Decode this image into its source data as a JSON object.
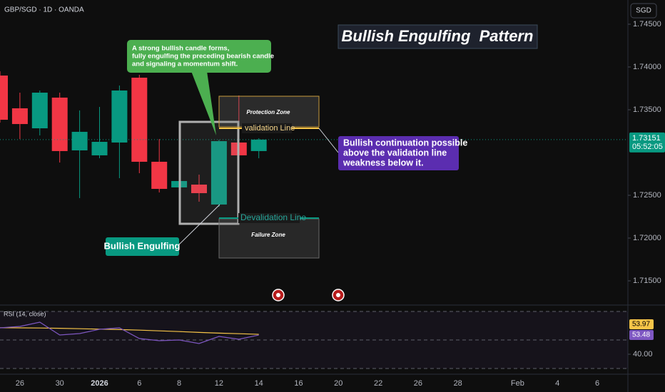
{
  "header": {
    "symbol": "GBP/SGD · 1D · OANDA",
    "currency_button": "SGD"
  },
  "chart_data": [
    {
      "type": "candlestick",
      "categories": [
        null,
        "26",
        null,
        "30",
        null,
        "2026",
        null,
        "6",
        null,
        "8",
        null,
        "12",
        null,
        "14",
        null,
        "16",
        null,
        "20",
        null,
        "22",
        null,
        "26",
        null,
        "28",
        null,
        null,
        "Feb",
        null,
        "4",
        null,
        "6"
      ],
      "open": [
        1.739,
        1.73517,
        1.73283,
        1.73642,
        1.73025,
        1.72967,
        1.73117,
        1.73875,
        1.72892,
        1.72592,
        1.72625,
        1.72392,
        1.73117,
        1.73017,
        null,
        null,
        null,
        null,
        null,
        null,
        null,
        null,
        null,
        null,
        null,
        null,
        null,
        null,
        null,
        null,
        null
      ],
      "high": [
        1.7395,
        1.737,
        1.73725,
        1.737,
        1.73492,
        1.73533,
        1.73783,
        1.73908,
        1.73158,
        1.72867,
        1.72742,
        1.7315,
        1.73667,
        1.73167,
        null,
        null,
        null,
        null,
        null,
        null,
        null,
        null,
        null,
        null,
        null,
        null,
        null,
        null,
        null,
        null,
        null
      ],
      "low": [
        1.7335,
        1.73158,
        1.732,
        1.72883,
        1.72467,
        1.72933,
        1.727,
        1.72758,
        1.72533,
        1.72517,
        1.72425,
        1.72367,
        1.72933,
        1.72933,
        null,
        null,
        null,
        null,
        null,
        null,
        null,
        null,
        null,
        null,
        null,
        null,
        null,
        null,
        null,
        null,
        null
      ],
      "close": [
        1.73383,
        1.73333,
        1.737,
        1.73017,
        1.73242,
        1.73125,
        1.73725,
        1.72892,
        1.72575,
        1.72667,
        1.72525,
        1.73133,
        1.72967,
        1.73151,
        null,
        null,
        null,
        null,
        null,
        null,
        null,
        null,
        null,
        null,
        null,
        null,
        null,
        null,
        null,
        null,
        null
      ],
      "up_color": "#089981",
      "down_color": "#f23645",
      "ylim": [
        1.71242,
        1.74783
      ],
      "yticks": [
        {
          "value": 1.745,
          "label": "1.74500"
        },
        {
          "value": 1.74,
          "label": "1.74000"
        },
        {
          "value": 1.735,
          "label": "1.73500"
        },
        {
          "value": 1.725,
          "label": "1.72500"
        },
        {
          "value": 1.72,
          "label": "1.72000"
        },
        {
          "value": 1.715,
          "label": "1.71500"
        }
      ],
      "last_price": {
        "value": 1.73151,
        "label": "1.73151"
      },
      "countdown": "05:52:05",
      "annotations": {
        "title": "Bullish Engulfing  Pattern",
        "callout": [
          "A strong bullish candle forms,",
          "fully engulfing the preceding bearish candle",
          "and signaling a momentum shift."
        ],
        "protection_zone": "Protection Zone",
        "validation_line": "validation Line",
        "devalidation_line": "Devalidation Line",
        "failure_zone": "Failure Zone",
        "note": [
          "Bullish continuation possible",
          "above the validation line",
          "weakness below it."
        ],
        "pattern_label": "Bullish Engulfing"
      }
    },
    {
      "type": "line",
      "title": "RSI (14, close)",
      "series": [
        {
          "color": "#f7c548",
          "values": [
            58.6,
            58.5,
            58.4,
            58.2,
            57.9,
            57.6,
            57.3,
            56.9,
            56.4,
            55.9,
            55.3,
            54.8,
            54.4,
            53.97
          ]
        },
        {
          "color": "#7e57c2",
          "values": [
            58.5,
            59.5,
            62.5,
            53.5,
            54.5,
            57.5,
            58.5,
            51,
            49.5,
            50,
            47.5,
            52.5,
            50.5,
            53.48
          ]
        }
      ],
      "ylim": [
        27.5,
        72.5
      ],
      "yticks": [
        {
          "value": 40,
          "label": "40.00"
        }
      ],
      "levels": [
        70,
        50,
        30
      ]
    }
  ]
}
